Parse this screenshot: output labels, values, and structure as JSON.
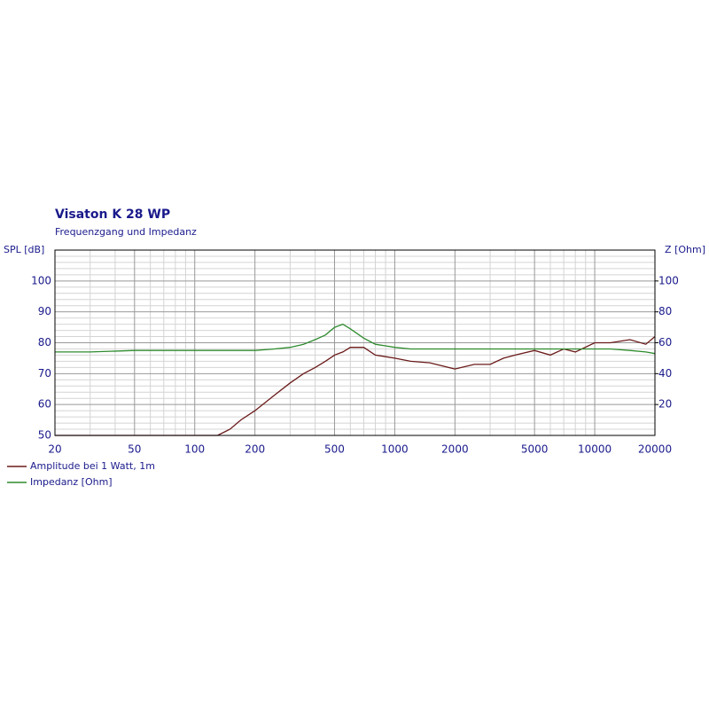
{
  "chart_data": {
    "type": "line",
    "title": "Visaton K 28 WP",
    "subtitle": "Frequenzgang und Impedanz",
    "y_label": "SPL [dB]",
    "y2_label": "Z [Ohm]",
    "x_scale": "log",
    "grid": true,
    "x": [
      20,
      30,
      50,
      100,
      130,
      150,
      170,
      200,
      250,
      300,
      350,
      400,
      450,
      500,
      550,
      600,
      700,
      800,
      900,
      1000,
      1200,
      1500,
      2000,
      2500,
      3000,
      3500,
      4000,
      5000,
      6000,
      7000,
      8000,
      10000,
      12000,
      15000,
      18000,
      20000
    ],
    "series": [
      {
        "name": "Amplitude bei 1 Watt, 1m",
        "color": "#6b1a1a",
        "axis": "y",
        "values": [
          50,
          50,
          50,
          50,
          50,
          52,
          55,
          58,
          63,
          67,
          70,
          72,
          74,
          76,
          77,
          78.5,
          78.5,
          76,
          75.5,
          75,
          74,
          73.5,
          71.5,
          73,
          73,
          75,
          76,
          77.5,
          76,
          78,
          77,
          80,
          80,
          81,
          79.5,
          82
        ]
      },
      {
        "name": "Impedanz [Ohm]",
        "color": "#2e8b2e",
        "axis": "y2",
        "values": [
          54,
          54,
          55,
          55,
          55,
          55,
          55,
          55,
          56,
          57,
          59,
          62,
          65,
          70,
          72,
          69,
          63,
          59,
          58,
          57,
          56,
          56,
          56,
          56,
          56,
          56,
          56,
          56,
          56,
          56,
          56,
          56,
          56,
          55,
          54,
          53
        ]
      }
    ],
    "xlim": [
      20,
      20000
    ],
    "xticks": [
      20,
      50,
      100,
      200,
      500,
      1000,
      2000,
      5000,
      10000,
      20000
    ],
    "xminor": [
      30,
      40,
      60,
      70,
      80,
      90,
      300,
      400,
      600,
      700,
      800,
      900,
      3000,
      4000,
      6000,
      7000,
      8000,
      9000
    ],
    "ylim": [
      50,
      110
    ],
    "yticks": [
      50,
      60,
      70,
      80,
      90,
      100
    ],
    "yminor": [
      52,
      54,
      56,
      58,
      62,
      64,
      66,
      68,
      72,
      74,
      76,
      78,
      82,
      84,
      86,
      88,
      92,
      94,
      96,
      98,
      102,
      104,
      106,
      108
    ],
    "y2lim": [
      0,
      120
    ],
    "y2ticks": [
      20,
      40,
      60,
      80,
      100
    ]
  }
}
